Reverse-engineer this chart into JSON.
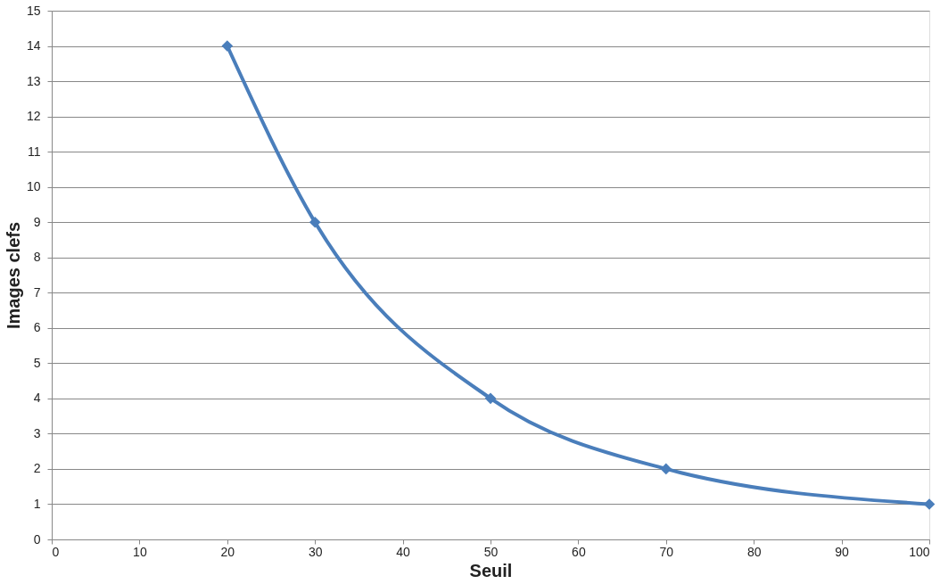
{
  "chart_data": {
    "type": "line",
    "xlabel": "Seuil",
    "ylabel": "Images clefs",
    "x": [
      20,
      30,
      50,
      70,
      100
    ],
    "series": [
      {
        "color": "#4a7ebb",
        "values": [
          14,
          9,
          4,
          2,
          1
        ]
      }
    ],
    "xlim": [
      0,
      100
    ],
    "xticks": [
      0,
      10,
      20,
      30,
      40,
      50,
      60,
      70,
      80,
      90,
      100
    ],
    "ylim": [
      0,
      15
    ],
    "yticks": [
      0,
      1,
      2,
      3,
      4,
      5,
      6,
      7,
      8,
      9,
      10,
      11,
      12,
      13,
      14,
      15
    ],
    "grid": "y",
    "marker": "diamond",
    "line_style": "solid"
  }
}
